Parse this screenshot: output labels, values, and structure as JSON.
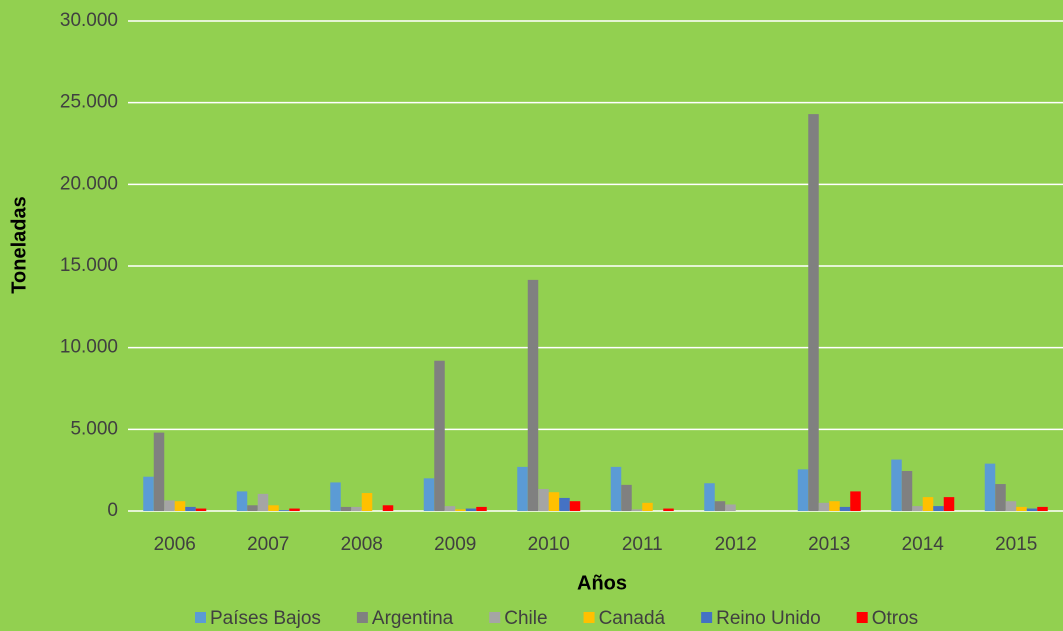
{
  "chart_data": {
    "type": "bar",
    "x_label": "Años",
    "y_label": "Toneladas",
    "categories": [
      "2006",
      "2007",
      "2008",
      "2009",
      "2010",
      "2011",
      "2012",
      "2013",
      "2014",
      "2015"
    ],
    "series": [
      {
        "name": "Países Bajos",
        "color": "#5b9bd5",
        "values": [
          2100,
          1200,
          1750,
          2000,
          2700,
          2700,
          1700,
          2550,
          3150,
          2900
        ]
      },
      {
        "name": "Argentina",
        "color": "#808080",
        "values": [
          4800,
          350,
          250,
          9200,
          14150,
          1600,
          600,
          24300,
          2450,
          1650
        ]
      },
      {
        "name": "Chile",
        "color": "#a5a5a5",
        "values": [
          650,
          1050,
          250,
          300,
          1350,
          100,
          400,
          500,
          300,
          600
        ]
      },
      {
        "name": "Canadá",
        "color": "#ffc000",
        "values": [
          600,
          350,
          1100,
          100,
          1150,
          500,
          0,
          600,
          850,
          250
        ]
      },
      {
        "name": "Reino Unido",
        "color": "#4472c4",
        "values": [
          250,
          50,
          0,
          150,
          800,
          0,
          0,
          250,
          300,
          150
        ]
      },
      {
        "name": "Otros",
        "color": "#ff0000",
        "values": [
          150,
          150,
          350,
          250,
          600,
          150,
          0,
          1200,
          850,
          250
        ]
      }
    ],
    "ylim": [
      0,
      30000
    ],
    "yticks": [
      0,
      {
        "value": 5000,
        "label": "5.000"
      },
      {
        "value": 10000,
        "label": "10.000"
      },
      {
        "value": 15000,
        "label": "15.000"
      },
      {
        "value": 20000,
        "label": "20.000"
      },
      {
        "value": 25000,
        "label": "25.000"
      },
      {
        "value": 30000,
        "label": "30.000"
      }
    ],
    "grid": true,
    "legend": "bottom"
  }
}
